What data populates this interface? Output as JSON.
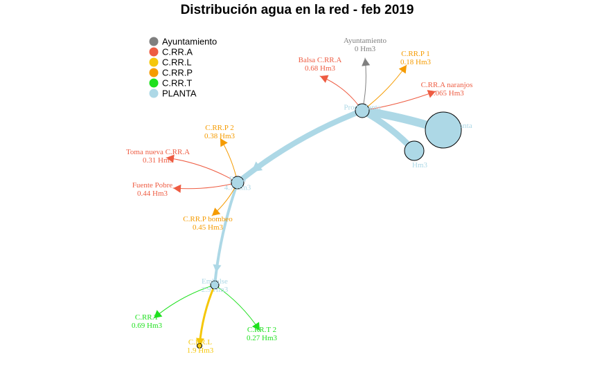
{
  "title": "Distribución agua en la red - feb 2019",
  "colors": {
    "Ayuntamiento": "#7f7f7f",
    "C.RR.A": "#ee5c42",
    "C.RR.L": "#f5c70a",
    "C.RR.P": "#f59b00",
    "C.RR.T": "#1ee01e",
    "PLANTA": "#add8e6"
  },
  "legend": [
    {
      "label": "Ayuntamiento",
      "group": "Ayuntamiento"
    },
    {
      "label": "C.RR.A",
      "group": "C.RR.A"
    },
    {
      "label": "C.RR.L",
      "group": "C.RR.L"
    },
    {
      "label": "C.RR.P",
      "group": "C.RR.P"
    },
    {
      "label": "C.RR.T",
      "group": "C.RR.T"
    },
    {
      "label": "PLANTA",
      "group": "PLANTA"
    }
  ],
  "nodes": [
    {
      "id": "hub1",
      "group": "PLANTA",
      "name": "Prod. planta",
      "value": ""
    },
    {
      "id": "big1",
      "group": "PLANTA",
      "name": "Planta",
      "value": ""
    },
    {
      "id": "big2",
      "group": "PLANTA",
      "name": "",
      "value": "Hm3"
    },
    {
      "id": "hub2",
      "group": "PLANTA",
      "name": "Balsa",
      "value": "4.7 Hm3"
    },
    {
      "id": "hub3",
      "group": "PLANTA",
      "name": "Embalse",
      "value": "2.9 Hm3"
    },
    {
      "id": "ayto",
      "group": "Ayuntamiento",
      "name": "Ayuntamiento",
      "value": "0 Hm3"
    },
    {
      "id": "balsa_a",
      "group": "C.RR.A",
      "name": "Balsa C.RR.A",
      "value": "0.68 Hm3"
    },
    {
      "id": "p1",
      "group": "C.RR.P",
      "name": "C.RR.P 1",
      "value": "0.18 Hm3"
    },
    {
      "id": "naranjos",
      "group": "C.RR.A",
      "name": "C.RR.A naranjos",
      "value": "0.065 Hm3"
    },
    {
      "id": "p2",
      "group": "C.RR.P",
      "name": "C.RR.P 2",
      "value": "0.38 Hm3"
    },
    {
      "id": "toma",
      "group": "C.RR.A",
      "name": "Toma nueva C.RR.A",
      "value": "0.31 Hm3"
    },
    {
      "id": "fuente",
      "group": "C.RR.A",
      "name": "Fuente Pobre",
      "value": "0.44 Hm3"
    },
    {
      "id": "pbombeo",
      "group": "C.RR.P",
      "name": "C.RR.P bombeo",
      "value": "0.45 Hm3"
    },
    {
      "id": "t1",
      "group": "C.RR.T",
      "name": "C.RR.T",
      "value": "0.69 Hm3"
    },
    {
      "id": "l",
      "group": "C.RR.L",
      "name": "C.RR.L",
      "value": "1.9 Hm3"
    },
    {
      "id": "t2",
      "group": "C.RR.T",
      "name": "C.RR.T 2",
      "value": "0.27 Hm3"
    }
  ],
  "edges": [
    {
      "from": "big1",
      "to": "hub1",
      "group": "PLANTA"
    },
    {
      "from": "big2",
      "to": "hub1",
      "group": "PLANTA"
    },
    {
      "from": "hub1",
      "to": "hub2",
      "group": "PLANTA"
    },
    {
      "from": "hub2",
      "to": "hub3",
      "group": "PLANTA"
    },
    {
      "from": "hub1",
      "to": "ayto",
      "group": "Ayuntamiento"
    },
    {
      "from": "hub1",
      "to": "balsa_a",
      "group": "C.RR.A"
    },
    {
      "from": "hub1",
      "to": "p1",
      "group": "C.RR.P"
    },
    {
      "from": "hub1",
      "to": "naranjos",
      "group": "C.RR.A"
    },
    {
      "from": "hub2",
      "to": "p2",
      "group": "C.RR.P"
    },
    {
      "from": "hub2",
      "to": "toma",
      "group": "C.RR.A"
    },
    {
      "from": "hub2",
      "to": "fuente",
      "group": "C.RR.A"
    },
    {
      "from": "hub2",
      "to": "pbombeo",
      "group": "C.RR.P"
    },
    {
      "from": "hub3",
      "to": "t1",
      "group": "C.RR.T"
    },
    {
      "from": "hub3",
      "to": "l",
      "group": "C.RR.L"
    },
    {
      "from": "hub3",
      "to": "t2",
      "group": "C.RR.T"
    }
  ]
}
